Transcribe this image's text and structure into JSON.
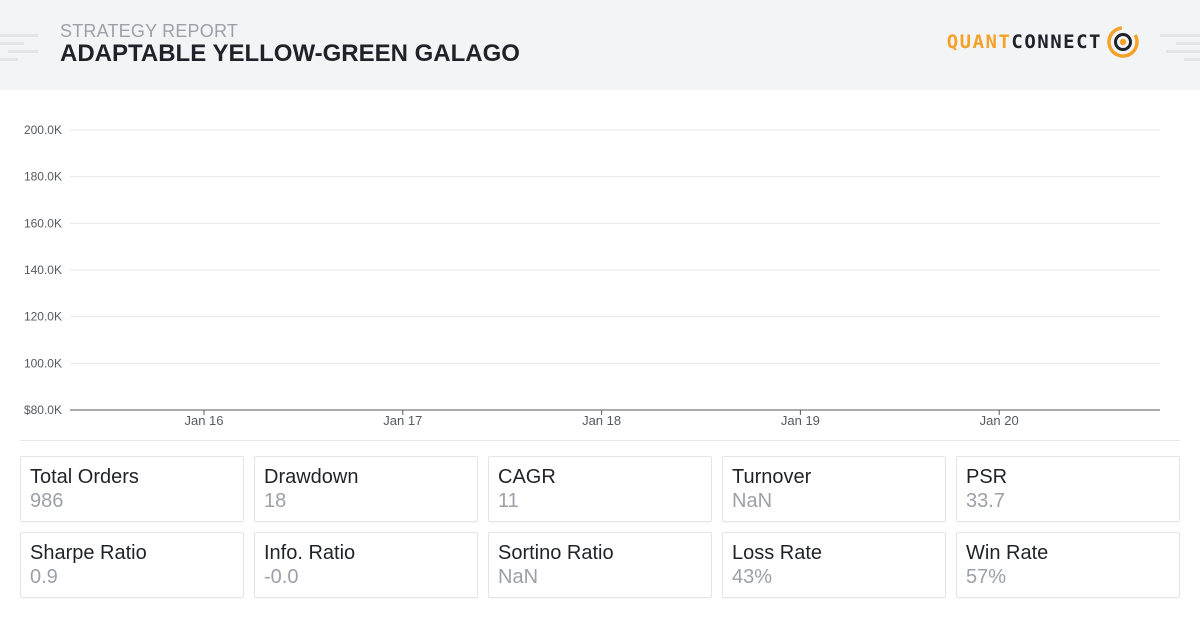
{
  "header": {
    "subtitle": "STRATEGY REPORT",
    "title": "ADAPTABLE YELLOW-GREEN GALAGO",
    "brand_part1": "QUANT",
    "brand_part2": "CONNECT",
    "brand_icon": "quantconnect-logo-icon",
    "colors": {
      "background": "#f3f4f6",
      "brand_orange": "#f5a12a",
      "title": "#1f2329"
    }
  },
  "chart_data": {
    "type": "line",
    "title": "",
    "xlabel": "",
    "ylabel": "",
    "y_ticks": [
      "$80.0K",
      "100.0K",
      "120.0K",
      "140.0K",
      "160.0K",
      "180.0K",
      "200.0K"
    ],
    "y_tick_values": [
      80000,
      100000,
      120000,
      140000,
      160000,
      180000,
      200000
    ],
    "ylim": [
      80000,
      200000
    ],
    "x_ticks": [
      "Jan 16",
      "Jan 17",
      "Jan 18",
      "Jan 19",
      "Jan 20"
    ],
    "grid": true,
    "series": []
  },
  "stats": [
    {
      "label": "Total Orders",
      "value": "986"
    },
    {
      "label": "Drawdown",
      "value": "18"
    },
    {
      "label": "CAGR",
      "value": "11"
    },
    {
      "label": "Turnover",
      "value": "NaN"
    },
    {
      "label": "PSR",
      "value": "33.7"
    },
    {
      "label": "Sharpe Ratio",
      "value": "0.9"
    },
    {
      "label": "Info. Ratio",
      "value": "-0.0"
    },
    {
      "label": "Sortino Ratio",
      "value": "NaN"
    },
    {
      "label": "Loss Rate",
      "value": "43%"
    },
    {
      "label": "Win Rate",
      "value": "57%"
    }
  ]
}
